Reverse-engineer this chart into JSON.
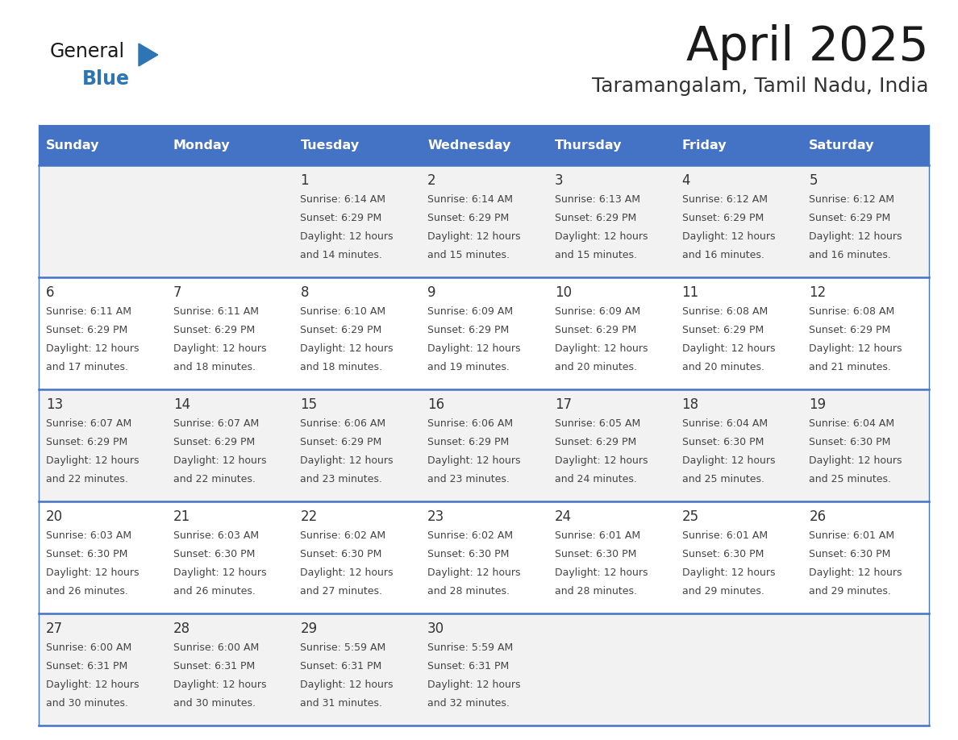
{
  "title": "April 2025",
  "subtitle": "Taramangalam, Tamil Nadu, India",
  "header_bg": "#4472C4",
  "header_text_color": "#FFFFFF",
  "day_names": [
    "Sunday",
    "Monday",
    "Tuesday",
    "Wednesday",
    "Thursday",
    "Friday",
    "Saturday"
  ],
  "row_bg_odd": "#F2F2F2",
  "row_bg_even": "#FFFFFF",
  "date_text_color": "#333333",
  "info_text_color": "#444444",
  "grid_line_color": "#4472C4",
  "title_color": "#1a1a1a",
  "subtitle_color": "#333333",
  "logo_general_color": "#1a1a1a",
  "logo_blue_color": "#2E75B6",
  "weeks": [
    {
      "days": [
        {
          "date": "",
          "sunrise": "",
          "sunset": "",
          "daylight": ""
        },
        {
          "date": "",
          "sunrise": "",
          "sunset": "",
          "daylight": ""
        },
        {
          "date": "1",
          "sunrise": "6:14 AM",
          "sunset": "6:29 PM",
          "daylight": "12 hours and 14 minutes."
        },
        {
          "date": "2",
          "sunrise": "6:14 AM",
          "sunset": "6:29 PM",
          "daylight": "12 hours and 15 minutes."
        },
        {
          "date": "3",
          "sunrise": "6:13 AM",
          "sunset": "6:29 PM",
          "daylight": "12 hours and 15 minutes."
        },
        {
          "date": "4",
          "sunrise": "6:12 AM",
          "sunset": "6:29 PM",
          "daylight": "12 hours and 16 minutes."
        },
        {
          "date": "5",
          "sunrise": "6:12 AM",
          "sunset": "6:29 PM",
          "daylight": "12 hours and 16 minutes."
        }
      ]
    },
    {
      "days": [
        {
          "date": "6",
          "sunrise": "6:11 AM",
          "sunset": "6:29 PM",
          "daylight": "12 hours and 17 minutes."
        },
        {
          "date": "7",
          "sunrise": "6:11 AM",
          "sunset": "6:29 PM",
          "daylight": "12 hours and 18 minutes."
        },
        {
          "date": "8",
          "sunrise": "6:10 AM",
          "sunset": "6:29 PM",
          "daylight": "12 hours and 18 minutes."
        },
        {
          "date": "9",
          "sunrise": "6:09 AM",
          "sunset": "6:29 PM",
          "daylight": "12 hours and 19 minutes."
        },
        {
          "date": "10",
          "sunrise": "6:09 AM",
          "sunset": "6:29 PM",
          "daylight": "12 hours and 20 minutes."
        },
        {
          "date": "11",
          "sunrise": "6:08 AM",
          "sunset": "6:29 PM",
          "daylight": "12 hours and 20 minutes."
        },
        {
          "date": "12",
          "sunrise": "6:08 AM",
          "sunset": "6:29 PM",
          "daylight": "12 hours and 21 minutes."
        }
      ]
    },
    {
      "days": [
        {
          "date": "13",
          "sunrise": "6:07 AM",
          "sunset": "6:29 PM",
          "daylight": "12 hours and 22 minutes."
        },
        {
          "date": "14",
          "sunrise": "6:07 AM",
          "sunset": "6:29 PM",
          "daylight": "12 hours and 22 minutes."
        },
        {
          "date": "15",
          "sunrise": "6:06 AM",
          "sunset": "6:29 PM",
          "daylight": "12 hours and 23 minutes."
        },
        {
          "date": "16",
          "sunrise": "6:06 AM",
          "sunset": "6:29 PM",
          "daylight": "12 hours and 23 minutes."
        },
        {
          "date": "17",
          "sunrise": "6:05 AM",
          "sunset": "6:29 PM",
          "daylight": "12 hours and 24 minutes."
        },
        {
          "date": "18",
          "sunrise": "6:04 AM",
          "sunset": "6:30 PM",
          "daylight": "12 hours and 25 minutes."
        },
        {
          "date": "19",
          "sunrise": "6:04 AM",
          "sunset": "6:30 PM",
          "daylight": "12 hours and 25 minutes."
        }
      ]
    },
    {
      "days": [
        {
          "date": "20",
          "sunrise": "6:03 AM",
          "sunset": "6:30 PM",
          "daylight": "12 hours and 26 minutes."
        },
        {
          "date": "21",
          "sunrise": "6:03 AM",
          "sunset": "6:30 PM",
          "daylight": "12 hours and 26 minutes."
        },
        {
          "date": "22",
          "sunrise": "6:02 AM",
          "sunset": "6:30 PM",
          "daylight": "12 hours and 27 minutes."
        },
        {
          "date": "23",
          "sunrise": "6:02 AM",
          "sunset": "6:30 PM",
          "daylight": "12 hours and 28 minutes."
        },
        {
          "date": "24",
          "sunrise": "6:01 AM",
          "sunset": "6:30 PM",
          "daylight": "12 hours and 28 minutes."
        },
        {
          "date": "25",
          "sunrise": "6:01 AM",
          "sunset": "6:30 PM",
          "daylight": "12 hours and 29 minutes."
        },
        {
          "date": "26",
          "sunrise": "6:01 AM",
          "sunset": "6:30 PM",
          "daylight": "12 hours and 29 minutes."
        }
      ]
    },
    {
      "days": [
        {
          "date": "27",
          "sunrise": "6:00 AM",
          "sunset": "6:31 PM",
          "daylight": "12 hours and 30 minutes."
        },
        {
          "date": "28",
          "sunrise": "6:00 AM",
          "sunset": "6:31 PM",
          "daylight": "12 hours and 30 minutes."
        },
        {
          "date": "29",
          "sunrise": "5:59 AM",
          "sunset": "6:31 PM",
          "daylight": "12 hours and 31 minutes."
        },
        {
          "date": "30",
          "sunrise": "5:59 AM",
          "sunset": "6:31 PM",
          "daylight": "12 hours and 32 minutes."
        },
        {
          "date": "",
          "sunrise": "",
          "sunset": "",
          "daylight": ""
        },
        {
          "date": "",
          "sunrise": "",
          "sunset": "",
          "daylight": ""
        },
        {
          "date": "",
          "sunrise": "",
          "sunset": "",
          "daylight": ""
        }
      ]
    }
  ]
}
